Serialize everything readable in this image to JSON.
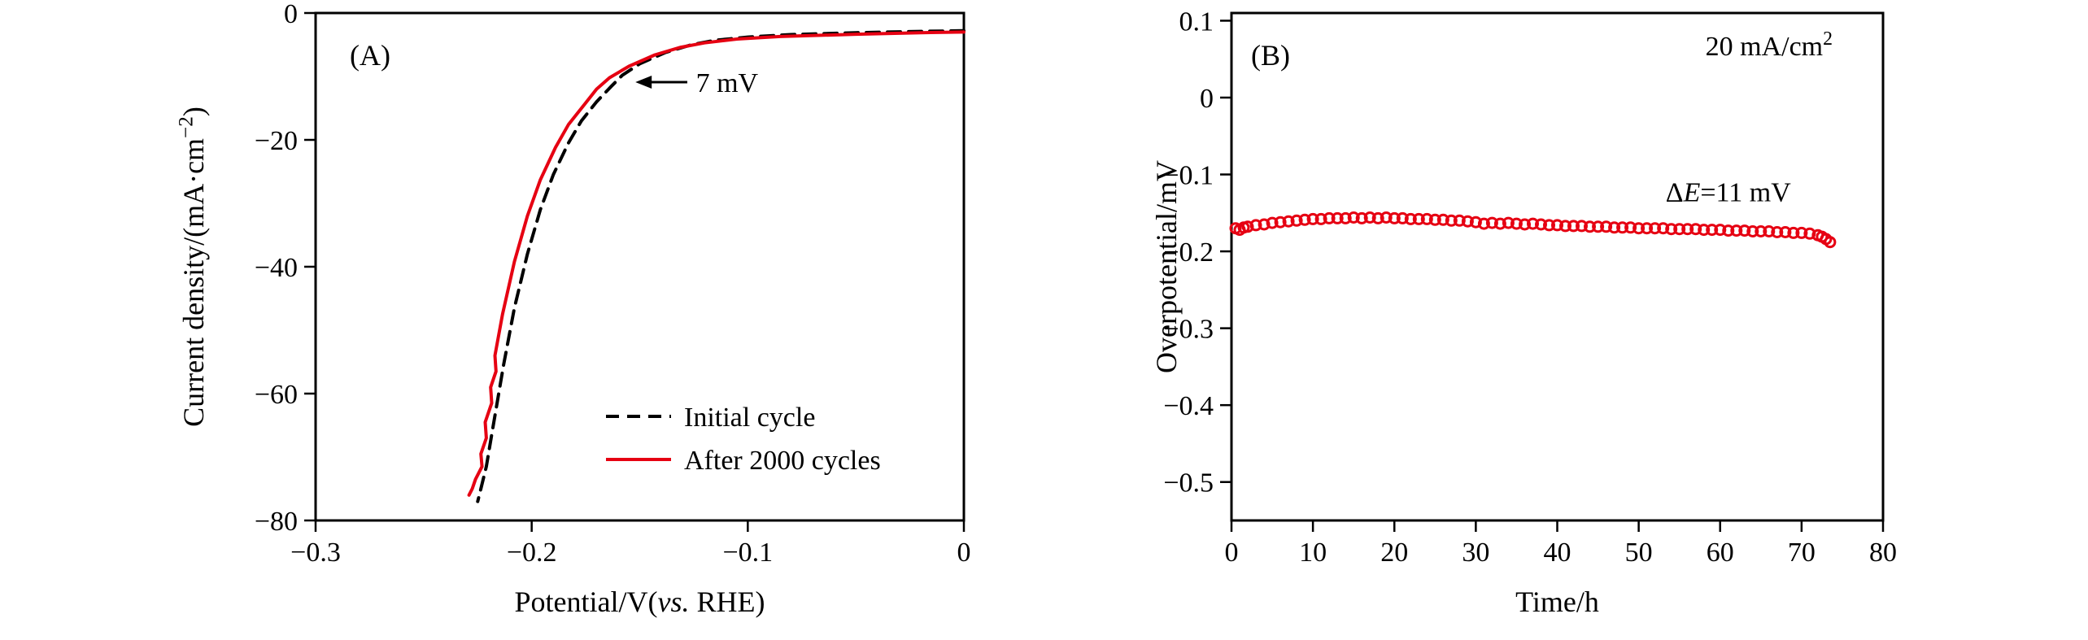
{
  "figure": {
    "background": "#ffffff",
    "axis_color": "#000000",
    "accent_red": "#e60012"
  },
  "chart_data": [
    {
      "id": "panel_a",
      "type": "line",
      "panel_label": "(A)",
      "xlabel_parts": [
        {
          "text": "Potential/V("
        },
        {
          "text": "vs.",
          "italic": true
        },
        {
          "text": " RHE)"
        }
      ],
      "ylabel_parts": [
        {
          "text": "Current density/(mA·cm"
        },
        {
          "text": "−2",
          "sup": true
        },
        {
          "text": ")"
        }
      ],
      "xlim": [
        -0.3,
        0
      ],
      "ylim": [
        -80,
        0
      ],
      "xticks": [
        {
          "v": -0.3,
          "label": "−0.3"
        },
        {
          "v": -0.2,
          "label": "−0.2"
        },
        {
          "v": -0.1,
          "label": "−0.1"
        },
        {
          "v": 0,
          "label": "0"
        }
      ],
      "yticks": [
        {
          "v": 0,
          "label": "0"
        },
        {
          "v": -20,
          "label": "−20"
        },
        {
          "v": -40,
          "label": "−40"
        },
        {
          "v": -60,
          "label": "−60"
        },
        {
          "v": -80,
          "label": "−80"
        }
      ],
      "annotation_arrow": {
        "text": "7 mV",
        "head": [
          -0.152,
          -10.9
        ],
        "tail": [
          -0.128,
          -10.9
        ],
        "text_at": [
          -0.124,
          -10.9
        ]
      },
      "series": [
        {
          "name": "Initial cycle",
          "color": "#000000",
          "dash": true,
          "points": [
            [
              0,
              -2.8
            ],
            [
              -0.02,
              -2.9
            ],
            [
              -0.05,
              -3.1
            ],
            [
              -0.08,
              -3.4
            ],
            [
              -0.1,
              -3.8
            ],
            [
              -0.115,
              -4.3
            ],
            [
              -0.126,
              -5.0
            ],
            [
              -0.138,
              -6.2
            ],
            [
              -0.15,
              -8.0
            ],
            [
              -0.158,
              -9.8
            ],
            [
              -0.163,
              -11.5
            ],
            [
              -0.17,
              -14.0
            ],
            [
              -0.177,
              -17.0
            ],
            [
              -0.183,
              -20.5
            ],
            [
              -0.19,
              -25.5
            ],
            [
              -0.196,
              -31.0
            ],
            [
              -0.202,
              -38.0
            ],
            [
              -0.208,
              -46.5
            ],
            [
              -0.213,
              -55.5
            ],
            [
              -0.218,
              -65.5
            ],
            [
              -0.221,
              -71.5
            ],
            [
              -0.2235,
              -75.0
            ],
            [
              -0.225,
              -77.0
            ]
          ]
        },
        {
          "name": "After 2000 cycles",
          "color": "#e60012",
          "dash": false,
          "points": [
            [
              0,
              -3.0
            ],
            [
              -0.02,
              -3.1
            ],
            [
              -0.05,
              -3.35
            ],
            [
              -0.085,
              -3.7
            ],
            [
              -0.105,
              -4.1
            ],
            [
              -0.12,
              -4.7
            ],
            [
              -0.131,
              -5.4
            ],
            [
              -0.143,
              -6.6
            ],
            [
              -0.155,
              -8.4
            ],
            [
              -0.164,
              -10.2
            ],
            [
              -0.17,
              -12.0
            ],
            [
              -0.176,
              -14.6
            ],
            [
              -0.183,
              -17.6
            ],
            [
              -0.189,
              -21.2
            ],
            [
              -0.196,
              -26.3
            ],
            [
              -0.202,
              -32.0
            ],
            [
              -0.208,
              -39.2
            ],
            [
              -0.2135,
              -47.5
            ],
            [
              -0.217,
              -54.0
            ],
            [
              -0.2165,
              -56.5
            ],
            [
              -0.219,
              -59.0
            ],
            [
              -0.2185,
              -61.5
            ],
            [
              -0.2215,
              -64.5
            ],
            [
              -0.221,
              -67.0
            ],
            [
              -0.2235,
              -69.5
            ],
            [
              -0.223,
              -71.5
            ],
            [
              -0.226,
              -73.5
            ],
            [
              -0.2275,
              -75.0
            ],
            [
              -0.229,
              -76.0
            ]
          ]
        }
      ],
      "legend": {
        "entries": [
          {
            "label": "Initial cycle",
            "color": "#000000",
            "dash": true
          },
          {
            "label": "After 2000 cycles",
            "color": "#e60012",
            "dash": false
          }
        ]
      }
    },
    {
      "id": "panel_b",
      "type": "scatter",
      "panel_label": "(B)",
      "xlabel_parts": [
        {
          "text": "Time/h"
        }
      ],
      "ylabel_parts": [
        {
          "text": "Overpotential/mV"
        }
      ],
      "xlim": [
        0,
        80
      ],
      "ylim": [
        -0.55,
        0.11
      ],
      "xticks": [
        {
          "v": 0,
          "label": "0"
        },
        {
          "v": 10,
          "label": "10"
        },
        {
          "v": 20,
          "label": "20"
        },
        {
          "v": 30,
          "label": "30"
        },
        {
          "v": 40,
          "label": "40"
        },
        {
          "v": 50,
          "label": "50"
        },
        {
          "v": 60,
          "label": "60"
        },
        {
          "v": 70,
          "label": "70"
        },
        {
          "v": 80,
          "label": "80"
        }
      ],
      "yticks": [
        {
          "v": 0.1,
          "label": "0.1"
        },
        {
          "v": 0,
          "label": "0"
        },
        {
          "v": -0.1,
          "label": "−0.1"
        },
        {
          "v": -0.2,
          "label": "−0.2"
        },
        {
          "v": -0.3,
          "label": "−0.3"
        },
        {
          "v": -0.4,
          "label": "−0.4"
        },
        {
          "v": -0.5,
          "label": "−0.5"
        }
      ],
      "annotations": [
        {
          "parts": [
            {
              "text": "20 mA/cm"
            },
            {
              "text": "2",
              "sup": true
            }
          ],
          "at": [
            66,
            0.055
          ]
        },
        {
          "parts": [
            {
              "text": "Δ"
            },
            {
              "text": "E",
              "italic": true
            },
            {
              "text": "=11 mV"
            }
          ],
          "at": [
            61,
            -0.135
          ]
        }
      ],
      "series": [
        {
          "name": "Overpotential at 20 mA/cm2",
          "color": "#e60012",
          "marker": "circle",
          "points": [
            [
              0.5,
              -0.17
            ],
            [
              1,
              -0.172
            ],
            [
              1.5,
              -0.169
            ],
            [
              2,
              -0.168
            ],
            [
              3,
              -0.166
            ],
            [
              4,
              -0.165
            ],
            [
              5,
              -0.163
            ],
            [
              6,
              -0.162
            ],
            [
              7,
              -0.161
            ],
            [
              8,
              -0.16
            ],
            [
              9,
              -0.159
            ],
            [
              10,
              -0.158
            ],
            [
              11,
              -0.158
            ],
            [
              12,
              -0.157
            ],
            [
              13,
              -0.157
            ],
            [
              14,
              -0.157
            ],
            [
              15,
              -0.156
            ],
            [
              16,
              -0.157
            ],
            [
              17,
              -0.156
            ],
            [
              18,
              -0.157
            ],
            [
              19,
              -0.156
            ],
            [
              20,
              -0.157
            ],
            [
              21,
              -0.157
            ],
            [
              22,
              -0.158
            ],
            [
              23,
              -0.158
            ],
            [
              24,
              -0.158
            ],
            [
              25,
              -0.159
            ],
            [
              26,
              -0.159
            ],
            [
              27,
              -0.16
            ],
            [
              28,
              -0.16
            ],
            [
              29,
              -0.161
            ],
            [
              30,
              -0.162
            ],
            [
              31,
              -0.164
            ],
            [
              32,
              -0.163
            ],
            [
              33,
              -0.164
            ],
            [
              34,
              -0.163
            ],
            [
              35,
              -0.164
            ],
            [
              36,
              -0.165
            ],
            [
              37,
              -0.164
            ],
            [
              38,
              -0.165
            ],
            [
              39,
              -0.166
            ],
            [
              40,
              -0.166
            ],
            [
              41,
              -0.167
            ],
            [
              42,
              -0.167
            ],
            [
              43,
              -0.167
            ],
            [
              44,
              -0.168
            ],
            [
              45,
              -0.168
            ],
            [
              46,
              -0.168
            ],
            [
              47,
              -0.169
            ],
            [
              48,
              -0.169
            ],
            [
              49,
              -0.169
            ],
            [
              50,
              -0.17
            ],
            [
              51,
              -0.17
            ],
            [
              52,
              -0.17
            ],
            [
              53,
              -0.17
            ],
            [
              54,
              -0.171
            ],
            [
              55,
              -0.171
            ],
            [
              56,
              -0.171
            ],
            [
              57,
              -0.171
            ],
            [
              58,
              -0.172
            ],
            [
              59,
              -0.172
            ],
            [
              60,
              -0.172
            ],
            [
              61,
              -0.173
            ],
            [
              62,
              -0.173
            ],
            [
              63,
              -0.173
            ],
            [
              64,
              -0.174
            ],
            [
              65,
              -0.174
            ],
            [
              66,
              -0.174
            ],
            [
              67,
              -0.175
            ],
            [
              68,
              -0.175
            ],
            [
              69,
              -0.176
            ],
            [
              70,
              -0.176
            ],
            [
              71,
              -0.177
            ],
            [
              72,
              -0.179
            ],
            [
              72.5,
              -0.181
            ],
            [
              73,
              -0.184
            ],
            [
              73.5,
              -0.188
            ]
          ]
        }
      ]
    }
  ]
}
